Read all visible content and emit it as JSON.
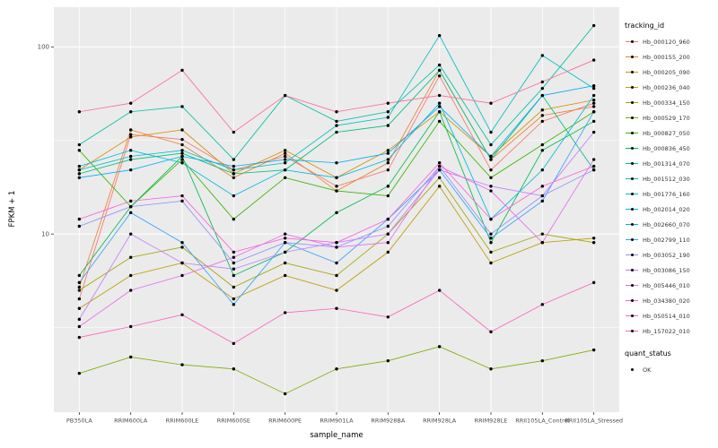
{
  "chart_data": {
    "type": "line",
    "title": "",
    "xlabel": "sample_name",
    "ylabel": "FPKM + 1",
    "y_scale": "log10",
    "y_ticks": [
      10,
      100
    ],
    "y_minor_ticks": [
      3.162,
      31.62
    ],
    "ylim": [
      1.1,
      160
    ],
    "grid": true,
    "legend_position": "right",
    "legend_title": "tracking_id",
    "legend2_title": "quant_status",
    "legend2_items": [
      "OK"
    ],
    "panel_bg": "#EBEBEB",
    "grid_color": "#FFFFFF",
    "point_color": "#000000",
    "tick_label_color": "#4D4D4D",
    "categories": [
      "PB350LA",
      "RRIM600LA",
      "RRIM600LE",
      "RRIM600SE",
      "RRIM600PE",
      "RRIM901LA",
      "RRIM928BA",
      "RRIM928LA",
      "RRIM928LE",
      "RRII105LA_Control",
      "RRII105LA_Stressed"
    ],
    "series": [
      {
        "name": "Hb_000120_960",
        "color": "#F8766D",
        "values": [
          4.5,
          34,
          32,
          22,
          26,
          18,
          22,
          70,
          22,
          40,
          50
        ]
      },
      {
        "name": "Hb_000155_200",
        "color": "#EA8331",
        "values": [
          5.2,
          36,
          30,
          20,
          27,
          17,
          24,
          75,
          25,
          43,
          48
        ]
      },
      {
        "name": "Hb_000205_090",
        "color": "#D89000",
        "values": [
          22,
          33,
          36,
          21,
          28,
          20,
          28,
          45,
          26,
          46,
          52
        ]
      },
      {
        "name": "Hb_000236_040",
        "color": "#C09B00",
        "values": [
          4.0,
          6.0,
          7.0,
          4.5,
          6.0,
          5.0,
          8.0,
          18,
          7.0,
          9.0,
          9.5
        ]
      },
      {
        "name": "Hb_000334_150",
        "color": "#A3A500",
        "values": [
          5.0,
          7.5,
          8.5,
          5.2,
          7.0,
          6.0,
          10,
          20,
          8.0,
          10,
          9.0
        ]
      },
      {
        "name": "Hb_000529_170",
        "color": "#7CAE00",
        "values": [
          1.8,
          2.2,
          2.0,
          1.9,
          1.4,
          1.9,
          2.1,
          2.5,
          1.9,
          2.1,
          2.4
        ]
      },
      {
        "name": "Hb_000827_050",
        "color": "#39B600",
        "values": [
          28,
          14,
          25,
          12,
          20,
          17,
          16,
          40,
          20,
          30,
          45
        ]
      },
      {
        "name": "Hb_000836_450",
        "color": "#00BB4E",
        "values": [
          6.0,
          14,
          26,
          6.0,
          8.0,
          13,
          18,
          45,
          9.0,
          28,
          40
        ]
      },
      {
        "name": "Hb_001314_070",
        "color": "#00BF7D",
        "values": [
          21,
          25,
          27,
          21,
          22,
          35,
          38,
          75,
          25,
          55,
          22
        ]
      },
      {
        "name": "Hb_001512_030",
        "color": "#00C1A3",
        "values": [
          30,
          45,
          48,
          25,
          55,
          40,
          45,
          80,
          30,
          60,
          130
        ]
      },
      {
        "name": "Hb_001776_160",
        "color": "#00BFC4",
        "values": [
          22,
          26,
          28,
          22,
          24,
          38,
          42,
          115,
          35,
          90,
          60
        ]
      },
      {
        "name": "Hb_002014_020",
        "color": "#00BAE0",
        "values": [
          23,
          28,
          24,
          16,
          22,
          20,
          25,
          50,
          12,
          22,
          55
        ]
      },
      {
        "name": "Hb_002660_070",
        "color": "#00B0F6",
        "values": [
          20,
          22,
          26,
          23,
          25,
          24,
          27,
          48,
          26,
          55,
          62
        ]
      },
      {
        "name": "Hb_002799_110",
        "color": "#35A2FF",
        "values": [
          5.5,
          13,
          9.0,
          4.2,
          9.0,
          7.0,
          12,
          22,
          9.5,
          15,
          45
        ]
      },
      {
        "name": "Hb_003052_190",
        "color": "#9590FF",
        "values": [
          11,
          14,
          15,
          7.0,
          9.0,
          8.5,
          11,
          23,
          10,
          16,
          22
        ]
      },
      {
        "name": "Hb_003086_150",
        "color": "#C77CFF",
        "values": [
          3.5,
          10,
          7.0,
          6.5,
          8.0,
          9.0,
          10,
          22,
          18,
          16,
          35
        ]
      },
      {
        "name": "Hb_005446_010",
        "color": "#E76BF3",
        "values": [
          3.2,
          5.0,
          6.0,
          7.5,
          10,
          8.5,
          9.0,
          23,
          17,
          9.0,
          25
        ]
      },
      {
        "name": "Hb_034380_020",
        "color": "#FA62DB",
        "values": [
          12,
          15,
          16,
          8.0,
          9.5,
          9.0,
          12,
          24,
          12,
          18,
          23
        ]
      },
      {
        "name": "Hb_050514_010",
        "color": "#FF62BC",
        "values": [
          2.8,
          3.2,
          3.7,
          2.6,
          3.8,
          4.0,
          3.6,
          5.0,
          3.0,
          4.2,
          5.5
        ]
      },
      {
        "name": "Hb_157022_010",
        "color": "#FF6A98",
        "values": [
          45,
          50,
          75,
          35,
          55,
          45,
          50,
          55,
          50,
          65,
          85
        ]
      }
    ]
  }
}
